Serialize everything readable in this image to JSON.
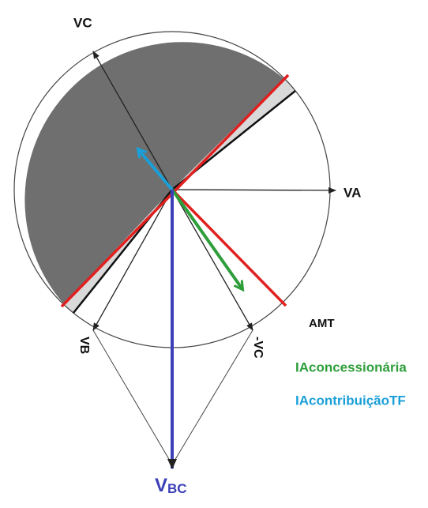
{
  "labels": {
    "vc": "VC",
    "va": "VA",
    "vb": "VB",
    "minus_vc": "-VC",
    "amt": "AMT",
    "vbc": {
      "main": "V",
      "sub": "BC"
    },
    "ia_concessionaria": "IAconcessionária",
    "ia_contribuicao": "IAcontribuiçãoTF"
  }
}
